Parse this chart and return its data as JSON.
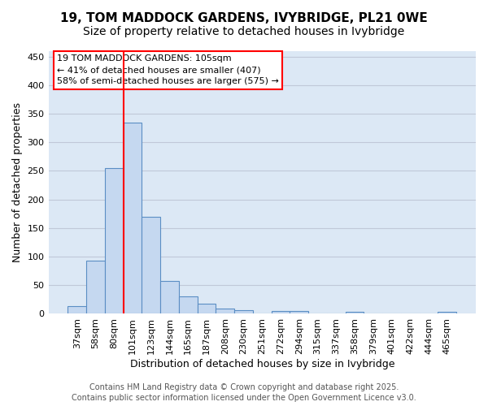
{
  "title_line1": "19, TOM MADDOCK GARDENS, IVYBRIDGE, PL21 0WE",
  "title_line2": "Size of property relative to detached houses in Ivybridge",
  "xlabel": "Distribution of detached houses by size in Ivybridge",
  "ylabel": "Number of detached properties",
  "categories": [
    "37sqm",
    "58sqm",
    "80sqm",
    "101sqm",
    "123sqm",
    "144sqm",
    "165sqm",
    "187sqm",
    "208sqm",
    "230sqm",
    "251sqm",
    "272sqm",
    "294sqm",
    "315sqm",
    "337sqm",
    "358sqm",
    "379sqm",
    "401sqm",
    "422sqm",
    "444sqm",
    "465sqm"
  ],
  "values": [
    14,
    93,
    255,
    335,
    170,
    57,
    31,
    18,
    9,
    6,
    0,
    5,
    5,
    0,
    0,
    3,
    0,
    0,
    0,
    0,
    4
  ],
  "bar_color": "#c5d8f0",
  "bar_edge_color": "#5b8ec4",
  "vline_x_index": 3.0,
  "vline_color": "red",
  "annotation_box_text": "19 TOM MADDOCK GARDENS: 105sqm\n← 41% of detached houses are smaller (407)\n58% of semi-detached houses are larger (575) →",
  "annotation_box_fc": "white",
  "annotation_box_ec": "red",
  "annotation_fontsize": 8,
  "ylim": [
    0,
    460
  ],
  "yticks": [
    0,
    50,
    100,
    150,
    200,
    250,
    300,
    350,
    400,
    450
  ],
  "grid_color": "#c0c8d8",
  "bg_color": "#dce8f5",
  "footer_line1": "Contains HM Land Registry data © Crown copyright and database right 2025.",
  "footer_line2": "Contains public sector information licensed under the Open Government Licence v3.0.",
  "title_fontsize": 11,
  "title2_fontsize": 10,
  "label_fontsize": 9,
  "tick_fontsize": 8,
  "footer_fontsize": 7,
  "ylabel_fontsize": 9
}
